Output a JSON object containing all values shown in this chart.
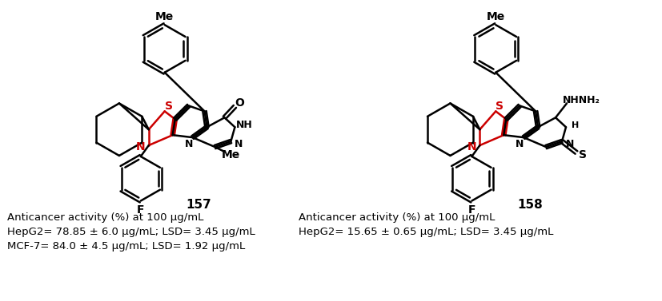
{
  "left_label": "157",
  "right_label": "158",
  "left_text_line1": "Anticancer activity (%) at 100 μg/mL",
  "left_text_line2": "HepG2= 78.85 ± 6.0 μg/mL; LSD= 3.45 μg/mL",
  "left_text_line3": "MCF-7= 84.0 ± 4.5 μg/mL; LSD= 1.92 μg/mL",
  "right_text_line1": "Anticancer activity (%) at 100 μg/mL",
  "right_text_line2": "HepG2= 15.65 ± 0.65 μg/mL; LSD= 3.45 μg/mL",
  "bg_color": "#ffffff",
  "text_color": "#000000",
  "red_color": "#cc0000"
}
